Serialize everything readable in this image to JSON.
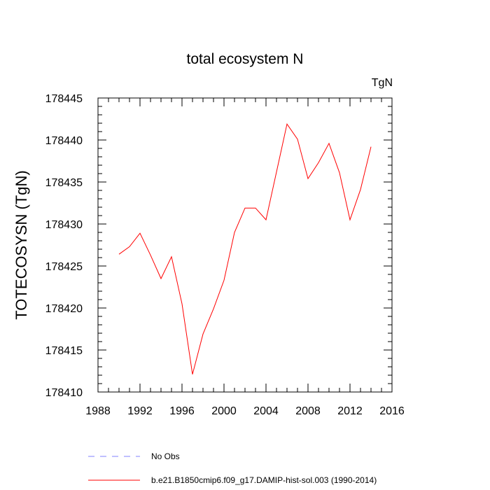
{
  "chart_data": {
    "type": "line",
    "title": "total ecosystem N",
    "units": "TgN",
    "xlabel": "",
    "ylabel": "TOTECOSYSN  (TgN)",
    "xlim": [
      1988,
      2016
    ],
    "ylim": [
      178410,
      178445
    ],
    "x_ticks": [
      1988,
      1992,
      1996,
      2000,
      2004,
      2008,
      2012,
      2016
    ],
    "y_ticks": [
      178410,
      178415,
      178420,
      178425,
      178430,
      178435,
      178440,
      178445
    ],
    "grid": false,
    "legend_position": "bottom",
    "series": [
      {
        "name": "b.e21.B1850cmip6.f09_g17.DAMIP-hist-sol.003 (1990-2014)",
        "color": "#ff0000",
        "style": "solid",
        "x": [
          1990,
          1991,
          1992,
          1993,
          1994,
          1995,
          1996,
          1997,
          1998,
          1999,
          2000,
          2001,
          2002,
          2003,
          2004,
          2005,
          2006,
          2007,
          2008,
          2009,
          2010,
          2011,
          2012,
          2013,
          2014
        ],
        "values": [
          178426.4,
          178427.3,
          178428.9,
          178426.3,
          178423.5,
          178426.1,
          178420.5,
          178412.1,
          178416.9,
          178419.9,
          178423.3,
          178429.0,
          178431.9,
          178431.9,
          178430.5,
          178436.2,
          178441.9,
          178440.1,
          178435.4,
          178437.3,
          178439.6,
          178436.1,
          178430.5,
          178434.1,
          178439.2
        ]
      }
    ],
    "legend_entries": [
      {
        "label": "No Obs",
        "color": "#8080ff",
        "style": "dashed"
      },
      {
        "label": "b.e21.B1850cmip6.f09_g17.DAMIP-hist-sol.003 (1990-2014)",
        "color": "#ff0000",
        "style": "solid"
      }
    ]
  }
}
